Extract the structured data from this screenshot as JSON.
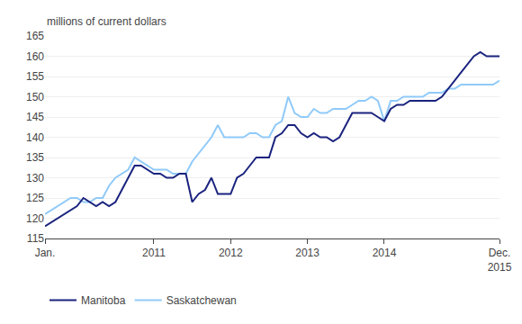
{
  "chart_data": {
    "type": "line",
    "ylabel": "millions of current dollars",
    "categories": [
      "Jan.",
      null,
      null,
      null,
      null,
      null,
      null,
      null,
      null,
      null,
      null,
      null,
      null,
      null,
      null,
      null,
      null,
      "2011",
      null,
      null,
      null,
      null,
      null,
      null,
      null,
      null,
      null,
      null,
      null,
      "2012",
      null,
      null,
      null,
      null,
      null,
      null,
      null,
      null,
      null,
      null,
      null,
      "2013",
      null,
      null,
      null,
      null,
      null,
      null,
      null,
      null,
      null,
      null,
      null,
      "2014",
      null,
      null,
      null,
      null,
      null,
      null,
      null,
      null,
      null,
      null,
      null,
      null,
      null,
      null,
      null,
      null,
      null,
      "Dec.\n2015"
    ],
    "series": [
      {
        "name": "Saskatchewan",
        "color": "#90caf9",
        "values": [
          121,
          122,
          123,
          124,
          125,
          125,
          124,
          124,
          125,
          125,
          128,
          130,
          131,
          132,
          135,
          134,
          133,
          132,
          132,
          132,
          131,
          131,
          131,
          134,
          136,
          138,
          140,
          143,
          140,
          140,
          140,
          140,
          141,
          141,
          140,
          140,
          143,
          144,
          150,
          146,
          145,
          145,
          147,
          146,
          146,
          147,
          147,
          147,
          148,
          149,
          149,
          150,
          149,
          144,
          149,
          149,
          150,
          150,
          150,
          150,
          151,
          151,
          151,
          152,
          152,
          153,
          153,
          153,
          153,
          153,
          153,
          154
        ]
      },
      {
        "name": "Manitoba",
        "color": "#1a237e",
        "values": [
          118,
          119,
          120,
          121,
          122,
          123,
          125,
          124,
          123,
          124,
          123,
          124,
          127,
          130,
          133,
          133,
          132,
          131,
          131,
          130,
          130,
          131,
          131,
          124,
          126,
          127,
          130,
          126,
          126,
          126,
          130,
          131,
          133,
          135,
          135,
          135,
          140,
          141,
          143,
          143,
          141,
          140,
          141,
          140,
          140,
          139,
          140,
          143,
          146,
          146,
          146,
          146,
          145,
          144,
          147,
          148,
          148,
          149,
          149,
          149,
          149,
          149,
          150,
          152,
          154,
          156,
          158,
          160,
          161,
          160,
          160,
          160
        ]
      }
    ],
    "ylim": [
      115,
      165
    ],
    "yticks": [
      115,
      120,
      125,
      130,
      135,
      140,
      145,
      150,
      155,
      160,
      165
    ],
    "grid": true,
    "legend": "bottom"
  }
}
